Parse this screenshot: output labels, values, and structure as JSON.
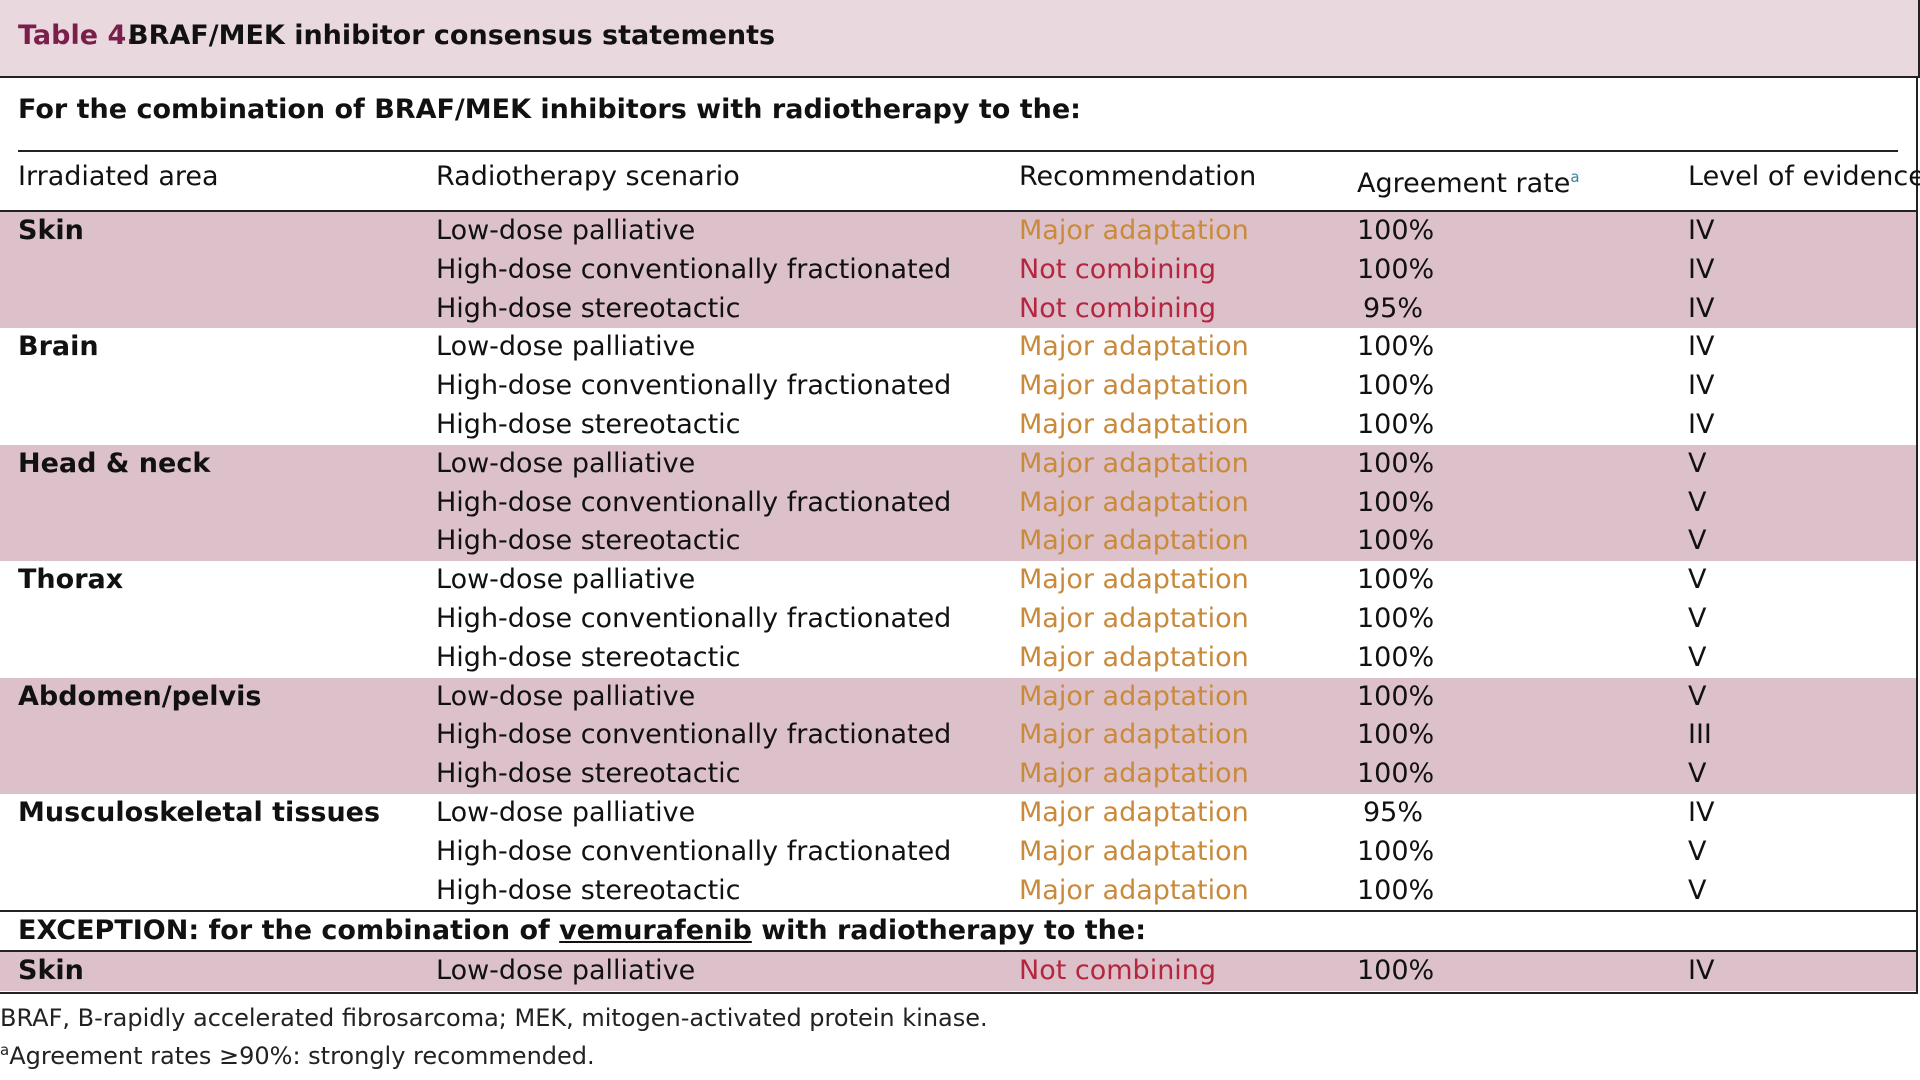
{
  "header": {
    "label": "Table 4.",
    "title": "BRAF/MEK inhibitor consensus statements"
  },
  "table": {
    "section_heading": "For the combination of BRAF/MEK inhibitors with radiotherapy to the:",
    "columns": [
      "Irradiated area",
      "Radiotherapy scenario",
      "Recommendation",
      "Agreement rate",
      "Level of evidence"
    ],
    "column_note": "a",
    "groups": [
      {
        "area": "Skin",
        "shaded": true,
        "rows": [
          {
            "scenario": "Low-dose palliative",
            "recommendation": "Major adaptation",
            "color": "#c98a3c",
            "agreement": "100%",
            "evidence": "IV"
          },
          {
            "scenario": "High-dose conventionally fractionated",
            "recommendation": "Not combining",
            "color": "#b3263f",
            "agreement": "100%",
            "evidence": "IV"
          },
          {
            "scenario": "High-dose stereotactic",
            "recommendation": "Not combining",
            "color": "#b3263f",
            "agreement": "95%",
            "evidence": "IV"
          }
        ]
      },
      {
        "area": "Brain",
        "shaded": false,
        "rows": [
          {
            "scenario": "Low-dose palliative",
            "recommendation": "Major adaptation",
            "color": "#c98a3c",
            "agreement": "100%",
            "evidence": "IV"
          },
          {
            "scenario": "High-dose conventionally fractionated",
            "recommendation": "Major adaptation",
            "color": "#c98a3c",
            "agreement": "100%",
            "evidence": "IV"
          },
          {
            "scenario": "High-dose stereotactic",
            "recommendation": "Major adaptation",
            "color": "#c98a3c",
            "agreement": "100%",
            "evidence": "IV"
          }
        ]
      },
      {
        "area": "Head & neck",
        "shaded": true,
        "rows": [
          {
            "scenario": "Low-dose palliative",
            "recommendation": "Major adaptation",
            "color": "#c98a3c",
            "agreement": "100%",
            "evidence": "V"
          },
          {
            "scenario": "High-dose conventionally fractionated",
            "recommendation": "Major adaptation",
            "color": "#c98a3c",
            "agreement": "100%",
            "evidence": "V"
          },
          {
            "scenario": "High-dose stereotactic",
            "recommendation": "Major adaptation",
            "color": "#c98a3c",
            "agreement": "100%",
            "evidence": "V"
          }
        ]
      },
      {
        "area": "Thorax",
        "shaded": false,
        "rows": [
          {
            "scenario": "Low-dose palliative",
            "recommendation": "Major adaptation",
            "color": "#c98a3c",
            "agreement": "100%",
            "evidence": "V"
          },
          {
            "scenario": "High-dose conventionally fractionated",
            "recommendation": "Major adaptation",
            "color": "#c98a3c",
            "agreement": "100%",
            "evidence": "V"
          },
          {
            "scenario": "High-dose stereotactic",
            "recommendation": "Major adaptation",
            "color": "#c98a3c",
            "agreement": "100%",
            "evidence": "V"
          }
        ]
      },
      {
        "area": "Abdomen/pelvis",
        "shaded": true,
        "rows": [
          {
            "scenario": "Low-dose palliative",
            "recommendation": "Major adaptation",
            "color": "#c98a3c",
            "agreement": "100%",
            "evidence": "V"
          },
          {
            "scenario": "High-dose conventionally fractionated",
            "recommendation": "Major adaptation",
            "color": "#c98a3c",
            "agreement": "100%",
            "evidence": "III"
          },
          {
            "scenario": "High-dose stereotactic",
            "recommendation": "Major adaptation",
            "color": "#c98a3c",
            "agreement": "100%",
            "evidence": "V"
          }
        ]
      },
      {
        "area": "Musculoskeletal tissues",
        "shaded": false,
        "rows": [
          {
            "scenario": "Low-dose palliative",
            "recommendation": "Major adaptation",
            "color": "#c98a3c",
            "agreement": "95%",
            "evidence": "IV"
          },
          {
            "scenario": "High-dose conventionally fractionated",
            "recommendation": "Major adaptation",
            "color": "#c98a3c",
            "agreement": "100%",
            "evidence": "V"
          },
          {
            "scenario": "High-dose stereotactic",
            "recommendation": "Major adaptation",
            "color": "#c98a3c",
            "agreement": "100%",
            "evidence": "V"
          }
        ]
      }
    ],
    "exception": {
      "heading_parts": [
        "EXCEPTION: for the combination of ",
        "vemurafenib",
        " with radiotherapy to the:"
      ],
      "groups": [
        {
          "area": "Skin",
          "shaded": true,
          "rows": [
            {
              "scenario": "Low-dose palliative",
              "recommendation": "Not combining",
              "color": "#b3263f",
              "agreement": "100%",
              "evidence": "IV"
            }
          ]
        }
      ]
    }
  },
  "footnotes": [
    {
      "text": "BRAF, B-rapidly accelerated fibrosarcoma; MEK, mitogen-activated protein kinase."
    },
    {
      "mark": "a",
      "text": "Agreement rates ≥90%: strongly recommended."
    }
  ]
}
